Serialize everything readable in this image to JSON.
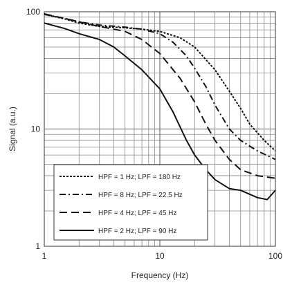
{
  "chart_data": {
    "type": "line",
    "xlabel": "Frequency (Hz)",
    "ylabel": "Signal (a.u.)",
    "x_scale": "log",
    "y_scale": "log",
    "xlim": [
      1,
      100
    ],
    "ylim": [
      1,
      100
    ],
    "x_ticks": [
      "1",
      "10",
      "100"
    ],
    "y_ticks": [
      "1",
      "10",
      "100"
    ],
    "grid": true,
    "legend_position": "bottom-left",
    "series": [
      {
        "name": "HPF = 1 Hz; LPF = 180 Hz",
        "style": "short-dash",
        "points": [
          [
            1,
            95
          ],
          [
            1.5,
            87
          ],
          [
            2,
            80
          ],
          [
            3,
            75
          ],
          [
            5,
            73
          ],
          [
            7,
            71
          ],
          [
            10,
            68
          ],
          [
            15,
            60
          ],
          [
            20,
            50
          ],
          [
            30,
            32
          ],
          [
            40,
            21
          ],
          [
            50,
            15
          ],
          [
            60,
            11
          ],
          [
            80,
            8
          ],
          [
            100,
            6.5
          ]
        ]
      },
      {
        "name": "HPF = 8 Hz; LPF = 22.5 Hz",
        "style": "dash-dot",
        "points": [
          [
            1,
            95
          ],
          [
            1.5,
            88
          ],
          [
            2,
            82
          ],
          [
            3,
            77
          ],
          [
            5,
            74
          ],
          [
            7,
            71
          ],
          [
            10,
            65
          ],
          [
            13,
            55
          ],
          [
            17,
            42
          ],
          [
            20,
            33
          ],
          [
            25,
            23
          ],
          [
            30,
            16
          ],
          [
            40,
            10
          ],
          [
            50,
            8
          ],
          [
            70,
            6.5
          ],
          [
            100,
            5.5
          ]
        ]
      },
      {
        "name": "HPF = 4 Hz; LPF = 45 Hz",
        "style": "long-dash",
        "points": [
          [
            1,
            96
          ],
          [
            2,
            82
          ],
          [
            3,
            75
          ],
          [
            5,
            68
          ],
          [
            7,
            58
          ],
          [
            10,
            44
          ],
          [
            15,
            27
          ],
          [
            20,
            17
          ],
          [
            25,
            11
          ],
          [
            30,
            8
          ],
          [
            40,
            5.5
          ],
          [
            50,
            4.5
          ],
          [
            70,
            4
          ],
          [
            100,
            3.8
          ]
        ]
      },
      {
        "name": "HPF = 2 Hz; LPF = 90 Hz",
        "style": "solid",
        "points": [
          [
            1,
            80
          ],
          [
            1.5,
            72
          ],
          [
            2,
            65
          ],
          [
            3,
            58
          ],
          [
            4,
            50
          ],
          [
            5,
            42
          ],
          [
            7,
            32
          ],
          [
            10,
            22
          ],
          [
            13,
            14
          ],
          [
            17,
            8
          ],
          [
            20,
            6
          ],
          [
            25,
            4.5
          ],
          [
            30,
            3.7
          ],
          [
            40,
            3.1
          ],
          [
            50,
            3.0
          ],
          [
            70,
            2.6
          ],
          [
            85,
            2.5
          ],
          [
            100,
            3.0
          ]
        ]
      }
    ]
  }
}
